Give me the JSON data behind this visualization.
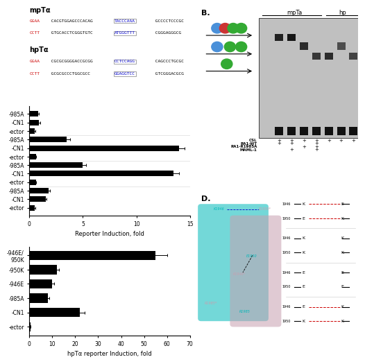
{
  "panel_A_top_label": "mpTα",
  "panel_A_bottom_label": "hpTα",
  "bar_chart1_labels": [
    "985A",
    "CN1",
    "ector",
    "985A",
    "CN1",
    "ector",
    "985A",
    "CN1",
    "ector",
    "985A",
    "CN1",
    "ector"
  ],
  "bar_chart1_values": [
    0.8,
    0.9,
    0.5,
    3.5,
    14.0,
    0.6,
    5.0,
    13.5,
    0.6,
    1.8,
    1.5,
    0.5
  ],
  "bar_chart1_errors": [
    0.1,
    0.1,
    0.05,
    0.3,
    0.5,
    0.05,
    0.3,
    0.5,
    0.05,
    0.15,
    0.1,
    0.05
  ],
  "bar_chart1_xlabel": "Reporter Induction, fold",
  "bar_chart2_labels": [
    "946E/\n950K",
    "950K",
    "946E",
    "985A",
    "CN1",
    "ector"
  ],
  "bar_chart2_values": [
    55.0,
    12.0,
    10.0,
    8.0,
    22.0,
    0.5
  ],
  "bar_chart2_errors": [
    5.0,
    1.0,
    0.8,
    0.7,
    2.0,
    0.05
  ],
  "bar_chart2_xlabel": "hpTα reporter Induction, fold",
  "bar_chart2_xticks": [
    0,
    10,
    20,
    30,
    40,
    50,
    60,
    70
  ],
  "bg_color": "#ffffff",
  "bar_color": "#000000",
  "red_color": "#cc0000",
  "blue_color": "#0000cc",
  "teal_color": "#00b8b8",
  "pink_color": "#c8a0b0"
}
